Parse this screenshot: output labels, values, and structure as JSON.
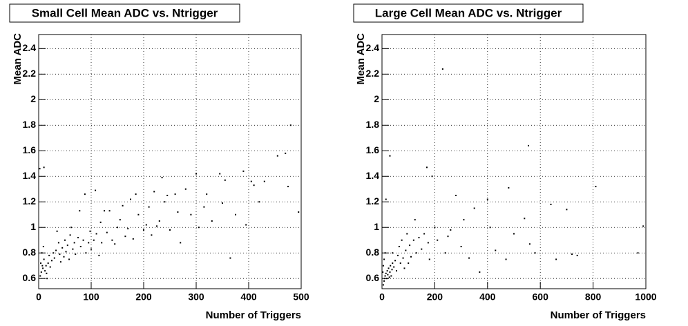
{
  "chart_data": [
    {
      "type": "scatter",
      "title": "Small Cell Mean ADC vs. Ntrigger",
      "x_label": "Number of Triggers",
      "y_label": "Mean ADC",
      "color": "#000000",
      "grid": true,
      "xlim": [
        0,
        500
      ],
      "ylim": [
        0.52,
        2.51
      ],
      "xticks": [
        0,
        100,
        200,
        300,
        400,
        500
      ],
      "yticks": [
        0.6,
        0.8,
        1,
        1.2,
        1.4,
        1.6,
        1.8,
        2,
        2.2,
        2.4
      ],
      "x": [
        2,
        10,
        3,
        5,
        7,
        4,
        8,
        10,
        12,
        14,
        6,
        9,
        15,
        18,
        20,
        22,
        25,
        28,
        16,
        30,
        33,
        35,
        38,
        40,
        42,
        45,
        48,
        50,
        52,
        55,
        58,
        60,
        62,
        65,
        68,
        70,
        75,
        78,
        80,
        85,
        88,
        90,
        95,
        98,
        100,
        105,
        108,
        110,
        115,
        118,
        120,
        125,
        130,
        135,
        140,
        145,
        150,
        155,
        160,
        165,
        170,
        175,
        180,
        185,
        190,
        200,
        205,
        210,
        215,
        220,
        225,
        230,
        235,
        240,
        245,
        250,
        260,
        265,
        270,
        280,
        290,
        300,
        305,
        315,
        320,
        330,
        345,
        350,
        355,
        365,
        375,
        390,
        395,
        405,
        410,
        420,
        430,
        455,
        470,
        475,
        480,
        495
      ],
      "y": [
        1.46,
        1.47,
        0.62,
        0.65,
        0.7,
        0.72,
        0.68,
        0.75,
        0.66,
        0.7,
        0.8,
        0.85,
        0.64,
        0.72,
        0.78,
        0.69,
        0.74,
        0.8,
        0.6,
        0.76,
        0.82,
        0.97,
        0.88,
        0.79,
        0.73,
        0.84,
        0.77,
        0.9,
        0.81,
        0.86,
        0.75,
        0.94,
        1.0,
        0.83,
        0.88,
        0.79,
        0.92,
        1.13,
        0.85,
        0.9,
        1.26,
        0.8,
        0.88,
        0.97,
        0.83,
        0.9,
        1.29,
        0.95,
        0.78,
        1.04,
        0.88,
        1.13,
        0.96,
        1.13,
        0.9,
        0.87,
        1.0,
        1.06,
        1.17,
        0.93,
        0.99,
        1.22,
        0.91,
        1.26,
        1.1,
        0.98,
        1.02,
        1.16,
        0.94,
        1.28,
        1.01,
        1.05,
        1.39,
        1.2,
        1.25,
        0.98,
        1.26,
        1.12,
        0.88,
        1.3,
        1.1,
        1.42,
        1.0,
        1.16,
        1.26,
        1.05,
        1.42,
        1.19,
        1.37,
        0.76,
        1.1,
        1.44,
        1.02,
        1.36,
        1.33,
        1.2,
        1.36,
        1.56,
        1.58,
        1.32,
        1.8,
        1.12
      ]
    },
    {
      "type": "scatter",
      "title": "Large Cell Mean ADC vs. Ntrigger",
      "x_label": "Number of Triggers",
      "y_label": "Mean ADC",
      "color": "#000000",
      "grid": true,
      "xlim": [
        0,
        1000
      ],
      "ylim": [
        0.52,
        2.51
      ],
      "xticks": [
        0,
        200,
        400,
        600,
        800,
        1000
      ],
      "yticks": [
        0.6,
        0.8,
        1,
        1.2,
        1.4,
        1.6,
        1.8,
        2,
        2.2,
        2.4
      ],
      "x": [
        5,
        8,
        10,
        12,
        15,
        18,
        20,
        22,
        25,
        28,
        30,
        32,
        35,
        38,
        40,
        5,
        3,
        8,
        12,
        15,
        30,
        40,
        45,
        50,
        55,
        60,
        65,
        70,
        75,
        80,
        85,
        90,
        95,
        100,
        105,
        110,
        120,
        125,
        130,
        140,
        150,
        160,
        170,
        175,
        180,
        190,
        200,
        210,
        230,
        240,
        250,
        260,
        280,
        300,
        310,
        330,
        350,
        370,
        400,
        410,
        430,
        470,
        480,
        500,
        540,
        555,
        560,
        580,
        640,
        660,
        700,
        720,
        740,
        810,
        970,
        990
      ],
      "y": [
        0.55,
        0.58,
        0.6,
        0.62,
        0.64,
        0.6,
        0.66,
        0.63,
        0.68,
        0.61,
        0.65,
        0.7,
        0.62,
        0.67,
        0.72,
        0.7,
        0.65,
        0.75,
        0.8,
        1.22,
        1.56,
        0.8,
        0.69,
        0.74,
        0.66,
        0.78,
        0.85,
        0.72,
        0.9,
        0.76,
        0.68,
        0.82,
        0.95,
        0.72,
        0.86,
        0.77,
        0.9,
        1.06,
        0.8,
        0.92,
        0.83,
        0.95,
        1.47,
        0.88,
        0.75,
        1.4,
        1.0,
        0.9,
        2.24,
        0.8,
        0.93,
        0.98,
        1.25,
        0.85,
        1.06,
        0.76,
        1.15,
        0.65,
        1.22,
        1.0,
        0.82,
        0.75,
        1.31,
        0.95,
        1.07,
        1.64,
        0.87,
        0.8,
        1.18,
        0.75,
        1.14,
        0.79,
        0.78,
        1.32,
        0.8,
        1.01
      ]
    }
  ]
}
